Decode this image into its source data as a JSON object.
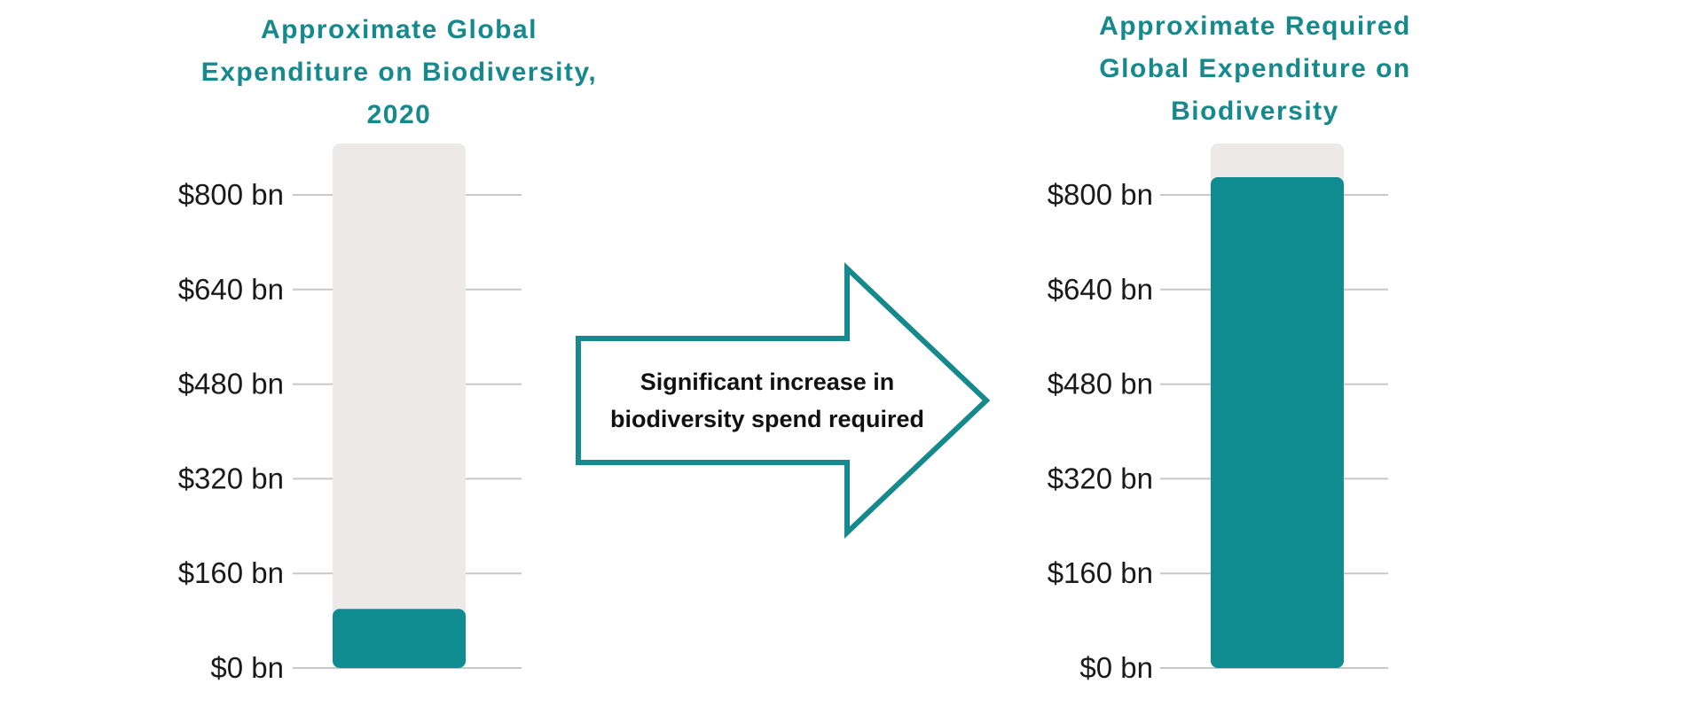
{
  "colors": {
    "accent": "#0e8c90",
    "title": "#16898c",
    "track": "#ece9e8",
    "grid": "#c8c8c8",
    "tick_text": "#1a1a1a",
    "arrow_stroke": "#16898c"
  },
  "chart_data": [
    {
      "type": "bar",
      "title": "Approximate Global Expenditure on Biodiversity, 2020",
      "categories": [
        ""
      ],
      "values": [
        100
      ],
      "unit": "bn USD",
      "ylim": [
        0,
        890
      ],
      "yticks": [
        0,
        160,
        320,
        480,
        640,
        800
      ],
      "ytick_labels": [
        "$0 bn",
        "$160 bn",
        "$320 bn",
        "$480 bn",
        "$640 bn",
        "$800 bn"
      ],
      "grid": true,
      "legend": "none"
    },
    {
      "type": "bar",
      "title": "Approximate Required Global Expenditure on Biodiversity",
      "categories": [
        ""
      ],
      "values": [
        830
      ],
      "unit": "bn USD",
      "ylim": [
        0,
        890
      ],
      "yticks": [
        0,
        160,
        320,
        480,
        640,
        800
      ],
      "ytick_labels": [
        "$0 bn",
        "$160 bn",
        "$320 bn",
        "$480 bn",
        "$640 bn",
        "$800 bn"
      ],
      "grid": true,
      "legend": "none"
    }
  ],
  "panels": {
    "left": {
      "title_lines": [
        "Approximate Global",
        "Expenditure on Biodiversity,",
        "2020"
      ]
    },
    "right": {
      "title_lines": [
        "Approximate Required",
        "Global Expenditure on",
        "Biodiversity"
      ]
    }
  },
  "arrow": {
    "icon": "right-arrow-icon",
    "label_lines": [
      "Significant increase in",
      "biodiversity spend required"
    ]
  }
}
